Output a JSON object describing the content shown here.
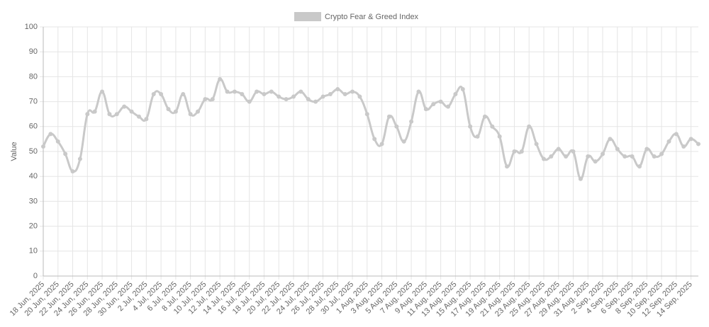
{
  "chart_data": {
    "type": "line",
    "legend": "top",
    "ylabel": "Value",
    "grid": true,
    "ylim": [
      0,
      100
    ],
    "yticks": [
      0,
      10,
      20,
      30,
      40,
      50,
      60,
      70,
      80,
      90,
      100
    ],
    "categories": [
      "18 Jun, 2025",
      null,
      "20 Jun, 2025",
      null,
      "22 Jun, 2025",
      null,
      "24 Jun, 2025",
      null,
      "26 Jun, 2025",
      null,
      "28 Jun, 2025",
      null,
      "30 Jun, 2025",
      null,
      "2 Jul, 2025",
      null,
      "4 Jul, 2025",
      null,
      "6 Jul, 2025",
      null,
      "8 Jul, 2025",
      null,
      "10 Jul, 2025",
      null,
      "12 Jul, 2025",
      null,
      "14 Jul, 2025",
      null,
      "16 Jul, 2025",
      null,
      "18 Jul, 2025",
      null,
      "20 Jul, 2025",
      null,
      "22 Jul, 2025",
      null,
      "24 Jul, 2025",
      null,
      "26 Jul, 2025",
      null,
      "28 Jul, 2025",
      null,
      "30 Jul, 2025",
      null,
      "1 Aug, 2025",
      null,
      "3 Aug, 2025",
      null,
      "5 Aug, 2025",
      null,
      "7 Aug, 2025",
      null,
      "9 Aug, 2025",
      null,
      "11 Aug, 2025",
      null,
      "13 Aug, 2025",
      null,
      "15 Aug, 2025",
      null,
      "17 Aug, 2025",
      null,
      "19 Aug, 2025",
      null,
      "21 Aug, 2025",
      null,
      "23 Aug, 2025",
      null,
      "25 Aug, 2025",
      null,
      "27 Aug, 2025",
      null,
      "29 Aug, 2025",
      null,
      "31 Aug, 2025",
      null,
      "2 Sep, 2025",
      null,
      "4 Sep, 2025",
      null,
      "6 Sep, 2025",
      null,
      "8 Sep, 2025",
      null,
      "10 Sep, 2025",
      null,
      "12 Sep, 2025",
      null,
      "14 Sep, 2025",
      null
    ],
    "series": [
      {
        "name": "Crypto Fear & Greed Index",
        "color": "#c9c9c9",
        "values": [
          52,
          57,
          54,
          49,
          42,
          47,
          65,
          66,
          74,
          65,
          65,
          68,
          66,
          64,
          63,
          73,
          73,
          67,
          66,
          73,
          65,
          66,
          71,
          71,
          79,
          74,
          74,
          73,
          70,
          74,
          73,
          74,
          72,
          71,
          72,
          74,
          71,
          70,
          72,
          73,
          75,
          73,
          74,
          72,
          65,
          55,
          53,
          64,
          60,
          54,
          62,
          74,
          67,
          69,
          70,
          68,
          73,
          75,
          60,
          56,
          64,
          60,
          56,
          44,
          50,
          50,
          60,
          53,
          47,
          48,
          51,
          48,
          50,
          39,
          48,
          46,
          49,
          55,
          51,
          48,
          48,
          44,
          51,
          48,
          49,
          54,
          57,
          52,
          55,
          53
        ]
      }
    ]
  }
}
